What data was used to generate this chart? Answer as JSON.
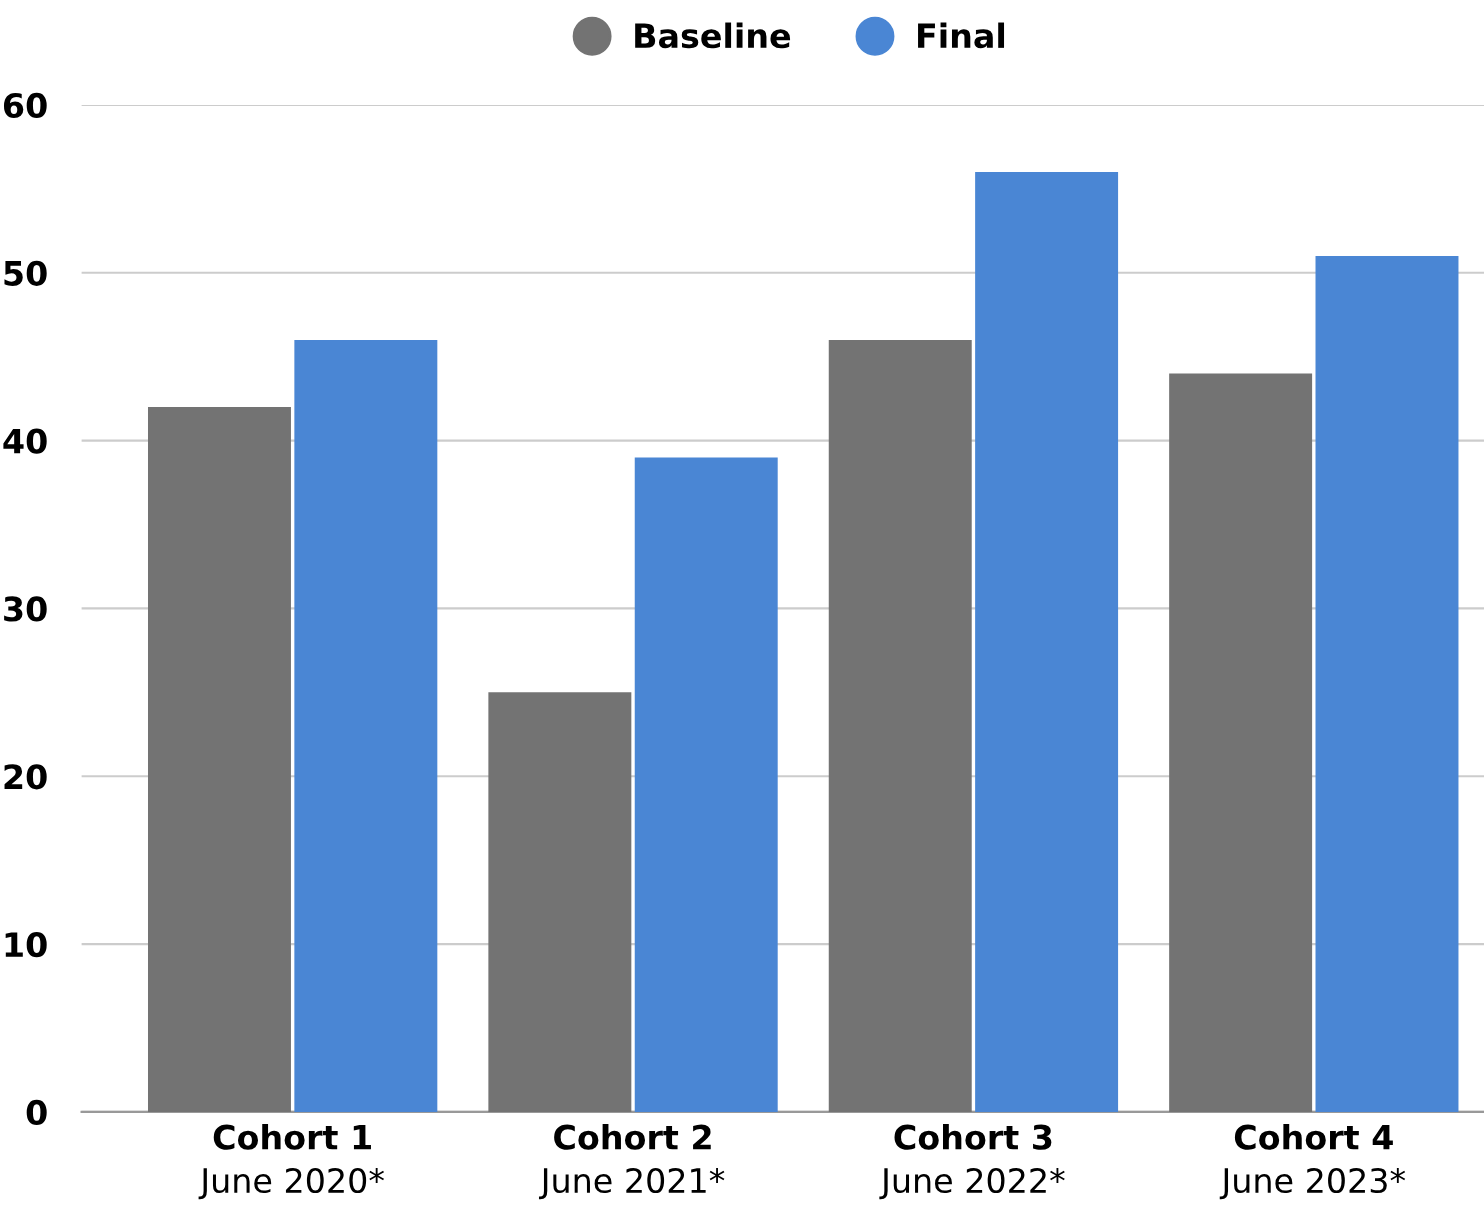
{
  "chart_data": {
    "type": "bar",
    "categories": [
      "Cohort 1\nJune 2020*",
      "Cohort 2\nJune 2021*",
      "Cohort 3\nJune 2022*",
      "Cohort 4\nJune 2023*"
    ],
    "series": [
      {
        "name": "Baseline",
        "color": "#737373",
        "values": [
          42,
          25,
          46,
          44
        ]
      },
      {
        "name": "Final",
        "color": "#4a86d4",
        "values": [
          46,
          39,
          56,
          51
        ]
      }
    ],
    "ylim": [
      0,
      60
    ],
    "yticks": [
      0,
      10,
      20,
      30,
      40,
      50,
      60
    ],
    "grid": "y",
    "legend": "top"
  }
}
